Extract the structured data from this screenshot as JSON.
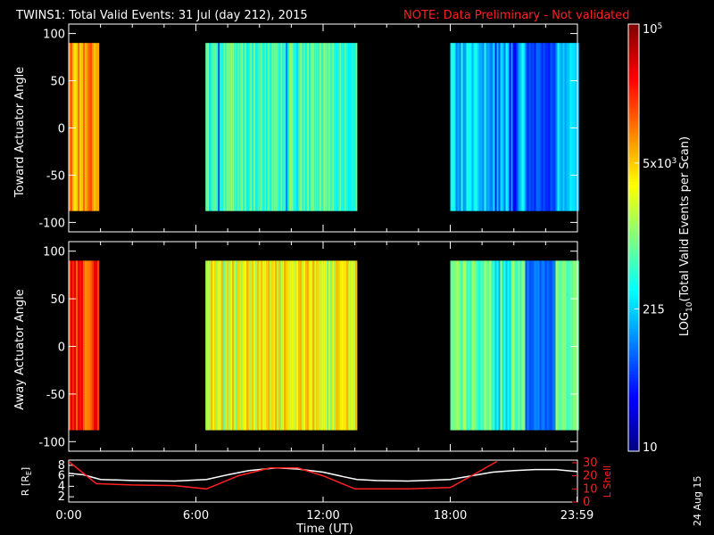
{
  "header": {
    "title": "TWINS1: Total Valid Events: 31 Jul (day 212), 2015",
    "note": "NOTE: Data Preliminary - Not validated"
  },
  "colors": {
    "background": "#000000",
    "axis": "#ffffff",
    "note": "#ff2020",
    "r_line": "#ffffff",
    "l_line": "#ff2020"
  },
  "stamp": "24 Aug 15",
  "chart_data": [
    {
      "type": "heatmap",
      "name": "toward",
      "ylabel": "Toward Actuator Angle",
      "ylim": [
        -110,
        110
      ],
      "yticks": [
        100,
        50,
        0,
        -50,
        -100
      ],
      "xlim": [
        0,
        24
      ],
      "data_range": [
        -88,
        90
      ],
      "segments": [
        {
          "start": 0.0,
          "end": 1.35,
          "level": 0.72
        },
        {
          "start": 6.45,
          "end": 13.6,
          "level": 0.45
        },
        {
          "start": 18.0,
          "end": 24.0,
          "level": 0.33
        }
      ]
    },
    {
      "type": "heatmap",
      "name": "away",
      "ylabel": "Away Actuator Angle",
      "ylim": [
        -110,
        110
      ],
      "yticks": [
        100,
        50,
        0,
        -50,
        -100
      ],
      "xlim": [
        0,
        24
      ],
      "data_range": [
        -88,
        90
      ],
      "segments": [
        {
          "start": 0.0,
          "end": 1.35,
          "level": 0.82
        },
        {
          "start": 6.45,
          "end": 13.6,
          "level": 0.62
        },
        {
          "start": 18.0,
          "end": 24.0,
          "level": 0.48
        }
      ]
    },
    {
      "type": "line",
      "name": "orbit",
      "xlabel": "Time (UT)",
      "xticks": [
        "0:00",
        "6:00",
        "12:00",
        "18:00",
        "23:59"
      ],
      "xtick_values": [
        0,
        6,
        12,
        18,
        23.98
      ],
      "xlim": [
        0,
        24
      ],
      "left_axis": {
        "label_prefix": "R [R",
        "label_sub": "E",
        "label_suffix": "]",
        "ylim": [
          1,
          9
        ],
        "ticks": [
          8,
          6,
          4,
          2
        ]
      },
      "right_axis": {
        "label": "L Shell",
        "ylim": [
          0,
          32
        ],
        "ticks": [
          30,
          20,
          10,
          0
        ]
      },
      "series": [
        {
          "name": "R [RE]",
          "axis": "left",
          "x": [
            0,
            0.7,
            1.5,
            3,
            5,
            6.5,
            7.5,
            8.5,
            9.8,
            10.8,
            12,
            13,
            13.6,
            14.5,
            16,
            18,
            19,
            20,
            21,
            22,
            23,
            24
          ],
          "y": [
            6.5,
            6.2,
            5.3,
            5.1,
            5.0,
            5.3,
            6.2,
            7.0,
            7.5,
            7.3,
            6.7,
            5.8,
            5.3,
            5.1,
            5.0,
            5.3,
            6.0,
            6.7,
            7.0,
            7.2,
            7.2,
            6.8
          ]
        },
        {
          "name": "L Shell",
          "axis": "right",
          "x": [
            0,
            1.3,
            3,
            5,
            6.5,
            8,
            9.5,
            10.8,
            12,
            13.5,
            16,
            18,
            19,
            20.2
          ],
          "y": [
            31,
            14,
            13,
            12.5,
            10,
            20,
            26,
            26,
            20,
            10,
            10,
            11,
            20,
            31
          ]
        }
      ]
    },
    {
      "type": "heatmap",
      "name": "colorbar",
      "title_prefix": "LOG",
      "title_sub": "10",
      "title_suffix": "(Total Valid Events per Scan)",
      "scale": "log",
      "range": [
        10,
        100000
      ],
      "ticks": [
        {
          "value": 10,
          "label": "10"
        },
        {
          "value": 215,
          "label": "215"
        },
        {
          "value": 5000,
          "label_base": "5x10",
          "label_exp": "3"
        },
        {
          "value": 100000,
          "label_base": "10",
          "label_exp": "5"
        }
      ]
    }
  ]
}
